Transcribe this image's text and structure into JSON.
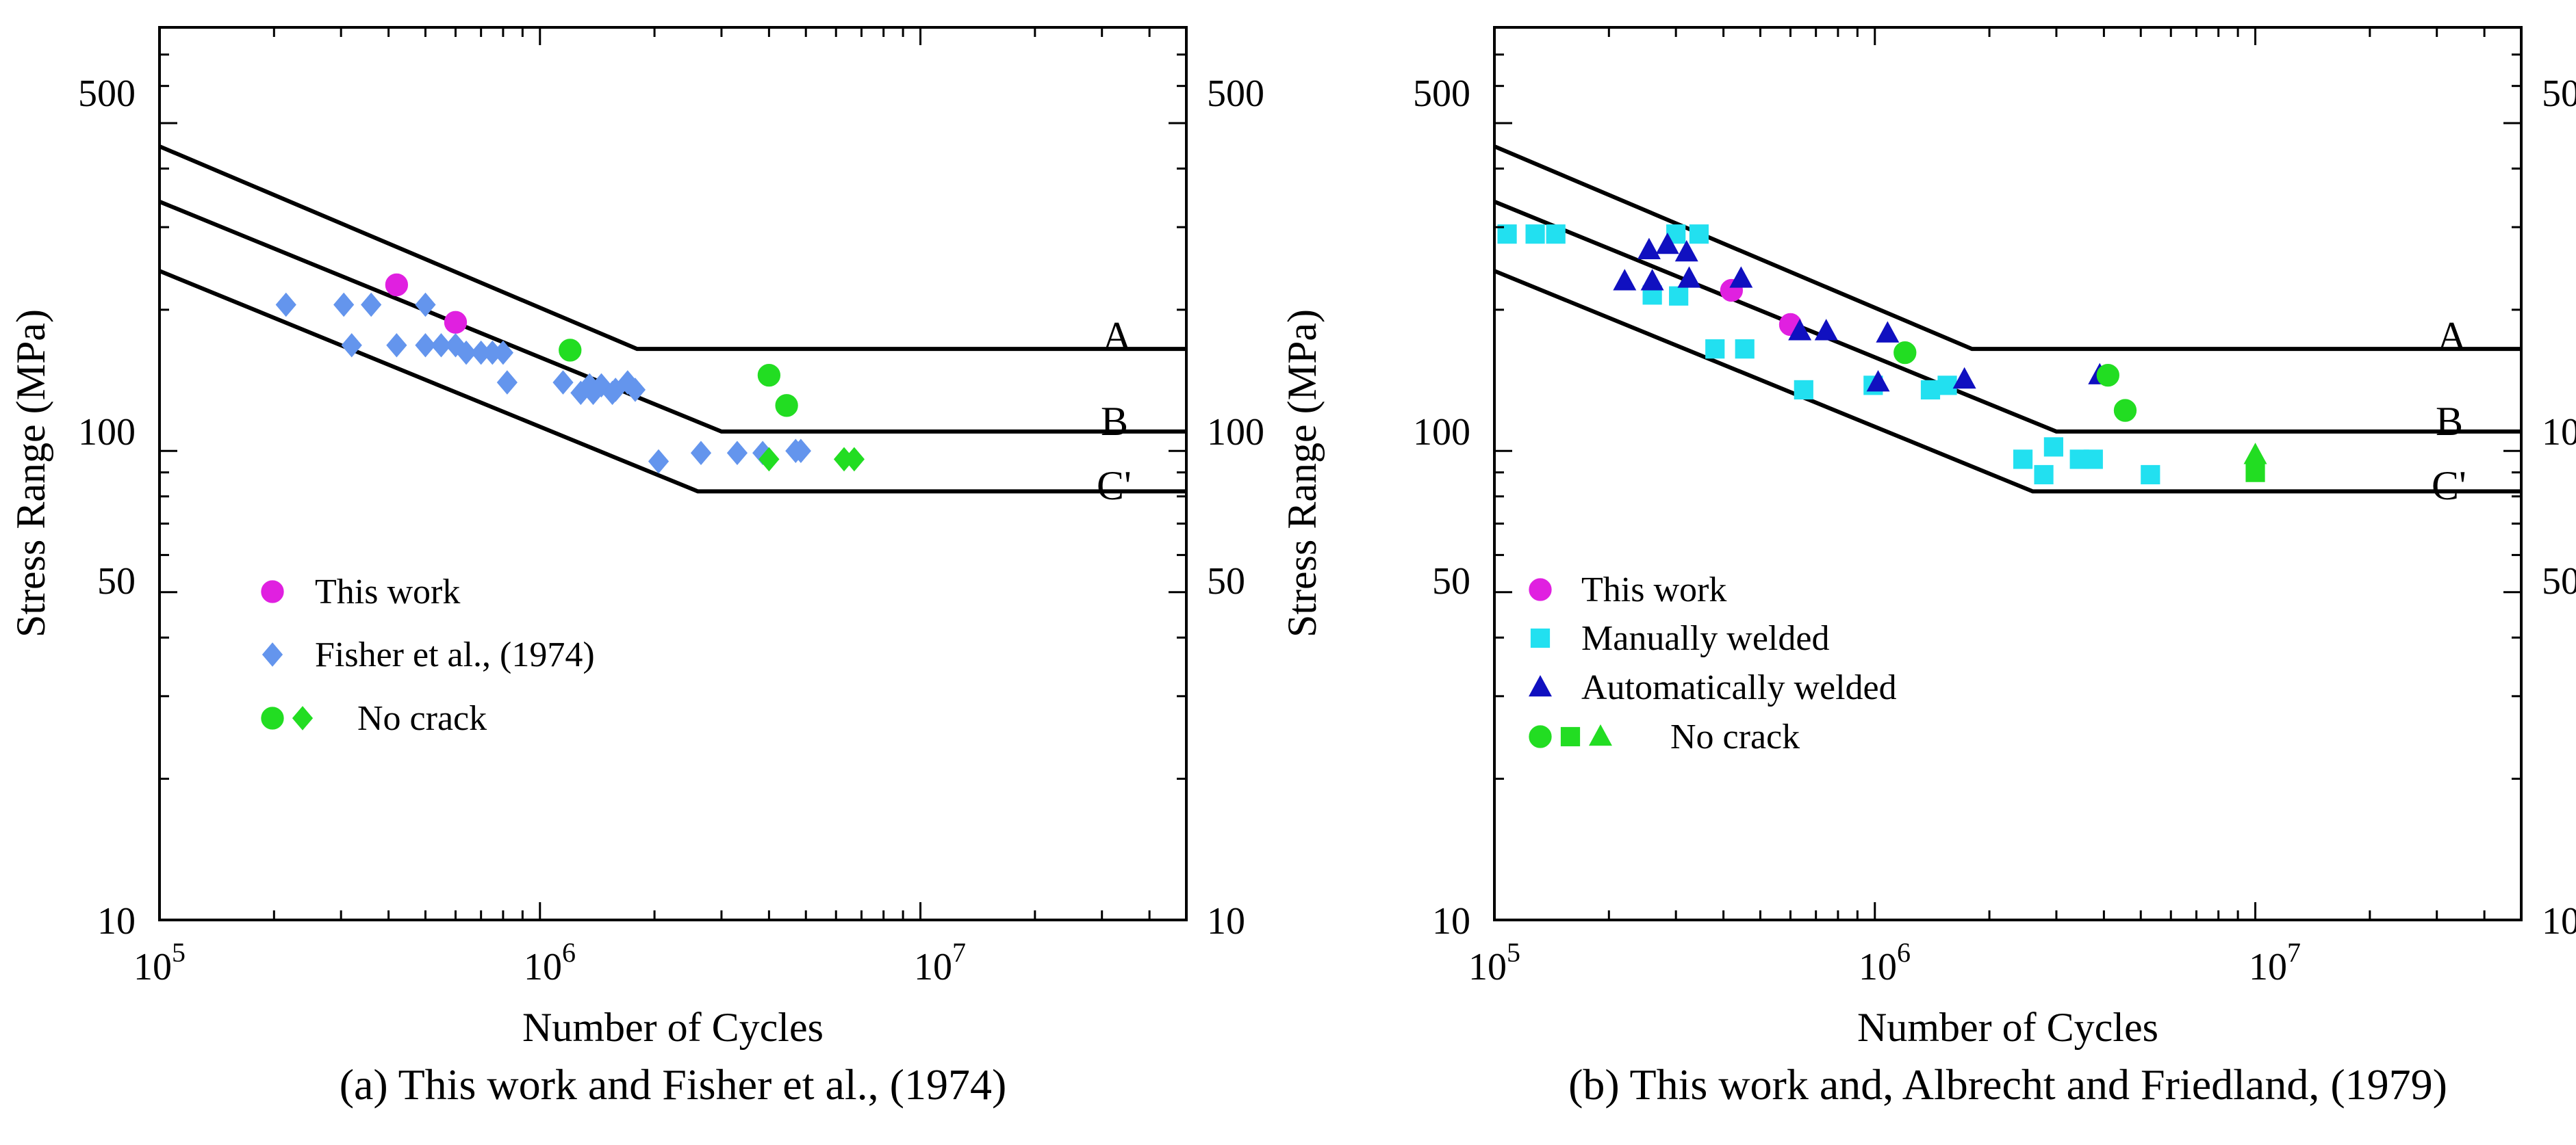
{
  "chart_data": [
    {
      "type": "scatter",
      "title": "(a) This work and Fisher et al., (1974)",
      "xlabel": "Number of Cycles",
      "ylabel": "Stress Range (MPa)",
      "xscale": "log",
      "yscale": "log",
      "xlim": [
        100000,
        50000000
      ],
      "ylim": [
        10,
        800
      ],
      "x_ticks": [
        {
          "exp": "5"
        },
        {
          "exp": "6"
        },
        {
          "exp": "7"
        }
      ],
      "y_ticks": [
        "10",
        "50",
        "100",
        "500"
      ],
      "legend_position": "center-left",
      "curves": [
        {
          "name": "A",
          "points": [
            [
              100000,
              446
            ],
            [
              1800000,
              165
            ],
            [
              50000000,
              165
            ]
          ]
        },
        {
          "name": "B",
          "points": [
            [
              100000,
              340
            ],
            [
              3000000,
              110
            ],
            [
              50000000,
              110
            ]
          ]
        },
        {
          "name": "C'",
          "points": [
            [
              100000,
              242
            ],
            [
              2600000,
              82
            ],
            [
              50000000,
              82
            ]
          ]
        }
      ],
      "series": [
        {
          "name": "This work",
          "marker": "circle",
          "color": "#e020e0",
          "x": [
            420000,
            600000
          ],
          "y": [
            226,
            188
          ]
        },
        {
          "name": "Fisher et al., (1974)",
          "marker": "diamond",
          "color": "#6495ed",
          "x": [
            215000,
            305000,
            360000,
            320000,
            500000,
            420000,
            500000,
            550000,
            600000,
            640000,
            700000,
            750000,
            800000,
            820000,
            1150000,
            1280000,
            1350000,
            1450000,
            1580000,
            1700000,
            1780000,
            1380000,
            1550000,
            2050000,
            2650000,
            3300000,
            3850000,
            4700000,
            4850000
          ],
          "y": [
            205,
            205,
            205,
            168,
            205,
            168,
            168,
            168,
            168,
            162,
            162,
            162,
            162,
            140,
            140,
            133,
            138,
            138,
            135,
            140,
            135,
            133,
            133,
            95,
            99,
            99,
            99,
            100,
            100
          ]
        },
        {
          "name": "No crack (circle)",
          "marker": "circle",
          "color": "#22dd22",
          "x": [
            1200000,
            4000000,
            4450000
          ],
          "y": [
            164,
            145,
            125
          ]
        },
        {
          "name": "No crack (diamond)",
          "marker": "diamond",
          "color": "#22dd22",
          "x": [
            4000000,
            6300000,
            6700000
          ],
          "y": [
            96,
            96,
            96
          ]
        }
      ],
      "legend": [
        {
          "label": "This work",
          "markers": [
            "circle"
          ],
          "colors": [
            "#e020e0"
          ]
        },
        {
          "label": "Fisher et al., (1974)",
          "markers": [
            "diamond"
          ],
          "colors": [
            "#6495ed"
          ]
        },
        {
          "label": "No crack",
          "markers": [
            "circle",
            "diamond"
          ],
          "colors": [
            "#22dd22",
            "#22dd22"
          ]
        }
      ]
    },
    {
      "type": "scatter",
      "title": "(b) This work and, Albrecht and Friedland, (1979)",
      "xlabel": "Number of Cycles",
      "ylabel": "Stress Range (MPa)",
      "xscale": "log",
      "yscale": "log",
      "xlim": [
        100000,
        50000000
      ],
      "ylim": [
        10,
        800
      ],
      "x_ticks": [
        {
          "exp": "5"
        },
        {
          "exp": "6"
        },
        {
          "exp": "7"
        }
      ],
      "y_ticks": [
        "10",
        "50",
        "100",
        "500"
      ],
      "legend_position": "lower-left",
      "curves": [
        {
          "name": "A",
          "points": [
            [
              100000,
              446
            ],
            [
              1800000,
              165
            ],
            [
              50000000,
              165
            ]
          ]
        },
        {
          "name": "B",
          "points": [
            [
              100000,
              340
            ],
            [
              3000000,
              110
            ],
            [
              50000000,
              110
            ]
          ]
        },
        {
          "name": "C'",
          "points": [
            [
              100000,
              242
            ],
            [
              2600000,
              82
            ],
            [
              50000000,
              82
            ]
          ]
        }
      ],
      "series": [
        {
          "name": "This work",
          "marker": "circle",
          "color": "#e020e0",
          "x": [
            420000,
            600000
          ],
          "y": [
            220,
            186
          ]
        },
        {
          "name": "Manually welded",
          "marker": "square",
          "color": "#22e0f0",
          "x": [
            108000,
            128000,
            145000,
            300000,
            345000,
            260000,
            305000,
            380000,
            455000,
            650000,
            990000,
            1400000,
            1550000,
            2450000,
            2780000,
            2950000,
            3450000,
            3750000,
            5300000
          ],
          "y": [
            290,
            290,
            290,
            290,
            290,
            215,
            214,
            165,
            165,
            135,
            138,
            135,
            138,
            96,
            89,
            102,
            96,
            96,
            89
          ]
        },
        {
          "name": "Automatically welded",
          "marker": "triangle",
          "color": "#1010c0",
          "x": [
            220000,
            255000,
            285000,
            320000,
            325000,
            260000,
            445000,
            635000,
            745000,
            1020000,
            1080000,
            1720000,
            3900000
          ],
          "y": [
            230,
            268,
            275,
            265,
            233,
            230,
            233,
            180,
            180,
            140,
            178,
            142,
            145
          ]
        },
        {
          "name": "No crack (circle)",
          "marker": "circle",
          "color": "#22dd22",
          "x": [
            1200000,
            4100000,
            4550000
          ],
          "y": [
            162,
            145,
            122
          ]
        },
        {
          "name": "No crack (square)",
          "marker": "square",
          "color": "#22dd22",
          "x": [
            10000000
          ],
          "y": [
            90
          ]
        },
        {
          "name": "No crack (triangle)",
          "marker": "triangle",
          "color": "#22dd22",
          "x": [
            10000000
          ],
          "y": [
            98
          ]
        }
      ],
      "legend": [
        {
          "label": "This work",
          "markers": [
            "circle"
          ],
          "colors": [
            "#e020e0"
          ]
        },
        {
          "label": "Manually welded",
          "markers": [
            "square"
          ],
          "colors": [
            "#22e0f0"
          ]
        },
        {
          "label": "Automatically welded",
          "markers": [
            "triangle"
          ],
          "colors": [
            "#1010c0"
          ]
        },
        {
          "label": "No crack",
          "markers": [
            "circle",
            "square",
            "triangle"
          ],
          "colors": [
            "#22dd22",
            "#22dd22",
            "#22dd22"
          ]
        }
      ]
    }
  ]
}
